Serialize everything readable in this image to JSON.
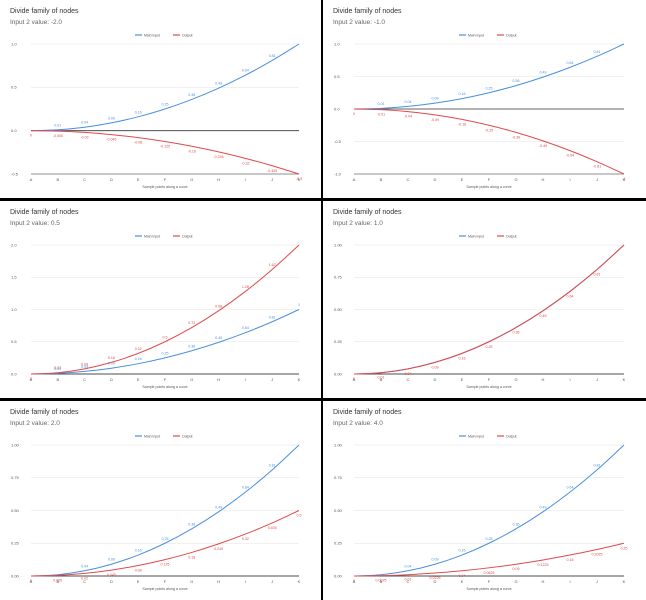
{
  "page": {
    "background": "#000000",
    "panel_background": "#ffffff"
  },
  "legend": [
    {
      "label": "Main input",
      "color": "#4a8fe0"
    },
    {
      "label": "Output",
      "color": "#e04a4a"
    }
  ],
  "panels": [
    {
      "title": "Divide family of nodes",
      "subtitle": "Input 2 value: -2.0",
      "chart_data": {
        "type": "line",
        "categories": [
          "A",
          "B",
          "C",
          "D",
          "E",
          "F",
          "G",
          "H",
          "I",
          "J",
          "K"
        ],
        "xlabel": "Sample points along a curve",
        "ylabel": "",
        "ylim": [
          -0.5,
          1.0
        ],
        "yticks": [
          -0.5,
          0,
          0.5,
          1.0
        ],
        "ytick_labels": [
          "-0.5",
          "0.0",
          "0.5",
          "1.0"
        ],
        "legend_position": "top-center",
        "grid": true,
        "series": [
          {
            "name": "Main input",
            "color": "#4a8fe0",
            "values": [
              0,
              0.01,
              0.04,
              0.09,
              0.16,
              0.25,
              0.36,
              0.49,
              0.64,
              0.81,
              1.0
            ],
            "labels": [
              "",
              "0.01",
              "0.04",
              "0.09",
              "0.16",
              "0.25",
              "0.36",
              "0.49",
              "0.64",
              "0.81",
              ""
            ]
          },
          {
            "name": "Output",
            "color": "#e04a4a",
            "values": [
              0,
              -0.005,
              -0.02,
              -0.045,
              -0.08,
              -0.125,
              -0.18,
              -0.245,
              -0.32,
              -0.405,
              -0.5
            ],
            "labels": [
              "0",
              "-0.005",
              "-0.02",
              "-0.045",
              "-0.08",
              "-0.125",
              "-0.18",
              "-0.245",
              "-0.32",
              "-0.405",
              "-0.5"
            ]
          }
        ]
      }
    },
    {
      "title": "Divide family of nodes",
      "subtitle": "Input 2 value: -1.0",
      "chart_data": {
        "type": "line",
        "categories": [
          "A",
          "B",
          "C",
          "D",
          "E",
          "F",
          "G",
          "H",
          "I",
          "J",
          "K"
        ],
        "xlabel": "Sample points along a curve",
        "ylabel": "",
        "ylim": [
          -1.0,
          1.0
        ],
        "yticks": [
          -1.0,
          -0.5,
          0,
          0.5,
          1.0
        ],
        "ytick_labels": [
          "-1.0",
          "-0.5",
          "0.0",
          "0.5",
          "1.0"
        ],
        "legend_position": "top-center",
        "grid": true,
        "series": [
          {
            "name": "Main input",
            "color": "#4a8fe0",
            "values": [
              0,
              0.01,
              0.04,
              0.09,
              0.16,
              0.25,
              0.36,
              0.49,
              0.64,
              0.81,
              1.0
            ],
            "labels": [
              "",
              "0.01",
              "0.04",
              "0.09",
              "0.16",
              "0.25",
              "0.36",
              "0.49",
              "0.64",
              "0.81",
              ""
            ]
          },
          {
            "name": "Output",
            "color": "#e04a4a",
            "values": [
              0,
              -0.01,
              -0.04,
              -0.09,
              -0.16,
              -0.25,
              -0.36,
              -0.49,
              -0.64,
              -0.81,
              -1.0
            ],
            "labels": [
              "0",
              "-0.01",
              "-0.04",
              "-0.09",
              "-0.16",
              "-0.25",
              "-0.36",
              "-0.49",
              "-0.64",
              "-0.81",
              "-1"
            ]
          }
        ]
      }
    },
    {
      "title": "Divide family of nodes",
      "subtitle": "Input 2 value: 0.5",
      "chart_data": {
        "type": "line",
        "categories": [
          "A",
          "B",
          "C",
          "D",
          "E",
          "F",
          "G",
          "H",
          "I",
          "J",
          "K"
        ],
        "xlabel": "Sample points along a curve",
        "ylabel": "",
        "ylim": [
          0,
          2.0
        ],
        "yticks": [
          0,
          0.5,
          1.0,
          1.5,
          2.0
        ],
        "ytick_labels": [
          "0.0",
          "0.5",
          "1.0",
          "1.5",
          "2.0"
        ],
        "legend_position": "top-center",
        "grid": true,
        "series": [
          {
            "name": "Main input",
            "color": "#4a8fe0",
            "values": [
              0,
              0.01,
              0.04,
              0.09,
              0.16,
              0.25,
              0.36,
              0.49,
              0.64,
              0.81,
              1.0
            ],
            "labels": [
              "",
              "0.01",
              "0.04",
              "0.09",
              "0.16",
              "0.25",
              "0.36",
              "0.49",
              "0.64",
              "0.81",
              "1"
            ]
          },
          {
            "name": "Output",
            "color": "#e04a4a",
            "values": [
              0,
              0.02,
              0.08,
              0.18,
              0.32,
              0.5,
              0.72,
              0.98,
              1.28,
              1.62,
              2.0
            ],
            "labels": [
              "0",
              "0.02",
              "0.08",
              "0.18",
              "0.32",
              "0.5",
              "0.72",
              "0.98",
              "1.28",
              "1.62",
              ""
            ]
          }
        ]
      }
    },
    {
      "title": "Divide family of nodes",
      "subtitle": "Input 2 value: 1.0",
      "chart_data": {
        "type": "line",
        "categories": [
          "A",
          "B",
          "C",
          "D",
          "E",
          "F",
          "G",
          "H",
          "I",
          "J",
          "K"
        ],
        "xlabel": "Sample points along a curve",
        "ylabel": "",
        "ylim": [
          0,
          1.0
        ],
        "yticks": [
          0,
          0.25,
          0.5,
          0.75,
          1.0
        ],
        "ytick_labels": [
          "0.00",
          "0.25",
          "0.50",
          "0.75",
          "1.00"
        ],
        "legend_position": "top-center",
        "grid": true,
        "series": [
          {
            "name": "Main input",
            "color": "#4a8fe0",
            "values": [
              0,
              0.01,
              0.04,
              0.09,
              0.16,
              0.25,
              0.36,
              0.49,
              0.64,
              0.81,
              1.0
            ],
            "labels": [
              "",
              "",
              "",
              "",
              "",
              "",
              "",
              "",
              "",
              "",
              ""
            ]
          },
          {
            "name": "Output",
            "color": "#e04a4a",
            "values": [
              0,
              0.01,
              0.04,
              0.09,
              0.16,
              0.25,
              0.36,
              0.49,
              0.64,
              0.81,
              1.0
            ],
            "labels": [
              "0",
              "0.01",
              "0.04",
              "0.09",
              "0.16",
              "0.25",
              "0.36",
              "0.49",
              "0.64",
              "0.81",
              ""
            ]
          }
        ]
      }
    },
    {
      "title": "Divide family of nodes",
      "subtitle": "Input 2 value: 2.0",
      "chart_data": {
        "type": "line",
        "categories": [
          "A",
          "B",
          "C",
          "D",
          "E",
          "F",
          "G",
          "H",
          "I",
          "J",
          "K"
        ],
        "xlabel": "Sample points along a curve",
        "ylabel": "",
        "ylim": [
          0,
          1.0
        ],
        "yticks": [
          0,
          0.25,
          0.5,
          0.75,
          1.0
        ],
        "ytick_labels": [
          "0.00",
          "0.25",
          "0.50",
          "0.75",
          "1.00"
        ],
        "legend_position": "top-center",
        "grid": true,
        "series": [
          {
            "name": "Main input",
            "color": "#4a8fe0",
            "values": [
              0,
              0.01,
              0.04,
              0.09,
              0.16,
              0.25,
              0.36,
              0.49,
              0.64,
              0.81,
              1.0
            ],
            "labels": [
              "",
              "",
              "0.04",
              "0.09",
              "0.16",
              "0.25",
              "0.36",
              "0.49",
              "0.64",
              "0.81",
              ""
            ]
          },
          {
            "name": "Output",
            "color": "#e04a4a",
            "values": [
              0,
              0.005,
              0.02,
              0.045,
              0.08,
              0.125,
              0.18,
              0.245,
              0.32,
              0.405,
              0.5
            ],
            "labels": [
              "0",
              "0.005",
              "0.02",
              "0.045",
              "0.08",
              "0.125",
              "0.18",
              "0.245",
              "0.32",
              "0.405",
              "0.5"
            ]
          }
        ]
      }
    },
    {
      "title": "Divide family of nodes",
      "subtitle": "Input 2 value: 4.0",
      "chart_data": {
        "type": "line",
        "categories": [
          "A",
          "B",
          "C",
          "D",
          "E",
          "F",
          "G",
          "H",
          "I",
          "J",
          "K"
        ],
        "xlabel": "Sample points along a curve",
        "ylabel": "",
        "ylim": [
          0,
          1.0
        ],
        "yticks": [
          0,
          0.25,
          0.5,
          0.75,
          1.0
        ],
        "ytick_labels": [
          "0.00",
          "0.25",
          "0.50",
          "0.75",
          "1.00"
        ],
        "legend_position": "top-center",
        "grid": true,
        "series": [
          {
            "name": "Main input",
            "color": "#4a8fe0",
            "values": [
              0,
              0.01,
              0.04,
              0.09,
              0.16,
              0.25,
              0.36,
              0.49,
              0.64,
              0.81,
              1.0
            ],
            "labels": [
              "",
              "",
              "0.04",
              "0.09",
              "0.16",
              "0.25",
              "0.36",
              "0.49",
              "0.64",
              "0.81",
              ""
            ]
          },
          {
            "name": "Output",
            "color": "#e04a4a",
            "values": [
              0,
              0.0025,
              0.01,
              0.0225,
              0.04,
              0.0625,
              0.09,
              0.1225,
              0.16,
              0.2025,
              0.25
            ],
            "labels": [
              "0",
              "0.0025",
              "0.01",
              "0.0225",
              "0.04",
              "0.0625",
              "0.09",
              "0.1225",
              "0.16",
              "0.2025",
              "0.25"
            ]
          }
        ]
      }
    }
  ]
}
